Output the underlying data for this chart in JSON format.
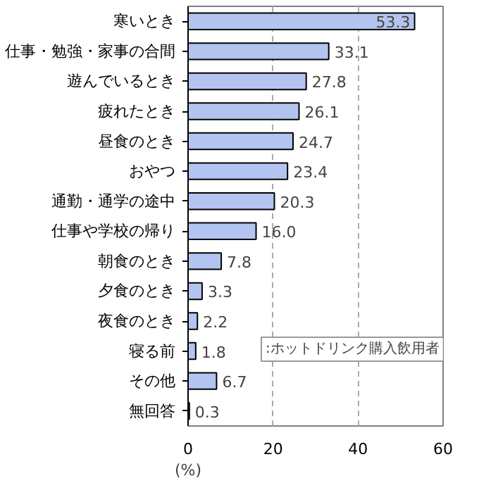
{
  "chart_data": {
    "type": "bar",
    "orientation": "horizontal",
    "xlabel": "(%)",
    "categories": [
      "寒いとき",
      "仕事・勉強・家事の合間",
      "遊んでいるとき",
      "疲れたとき",
      "昼食のとき",
      "おやつ",
      "通勤・通学の途中",
      "仕事や学校の帰り",
      "朝食のとき",
      "夕食のとき",
      "夜食のとき",
      "寝る前",
      "その他",
      "無回答"
    ],
    "values": [
      53.3,
      33.1,
      27.8,
      26.1,
      24.7,
      23.4,
      20.3,
      16.0,
      7.8,
      3.3,
      2.2,
      1.8,
      6.7,
      0.3
    ],
    "value_labels": [
      "53.3",
      "33.1",
      "27.8",
      "26.1",
      "24.7",
      "23.4",
      "20.3",
      "16.0",
      "7.8",
      "3.3",
      "2.2",
      "1.8",
      "6.7",
      "0.3"
    ],
    "color": "#b4c4f0",
    "xlim": [
      0,
      60
    ],
    "xticks": [
      0,
      20,
      40,
      60
    ],
    "grid": "x",
    "annotations": [
      ":ホットドリンク購入飲用者"
    ]
  }
}
